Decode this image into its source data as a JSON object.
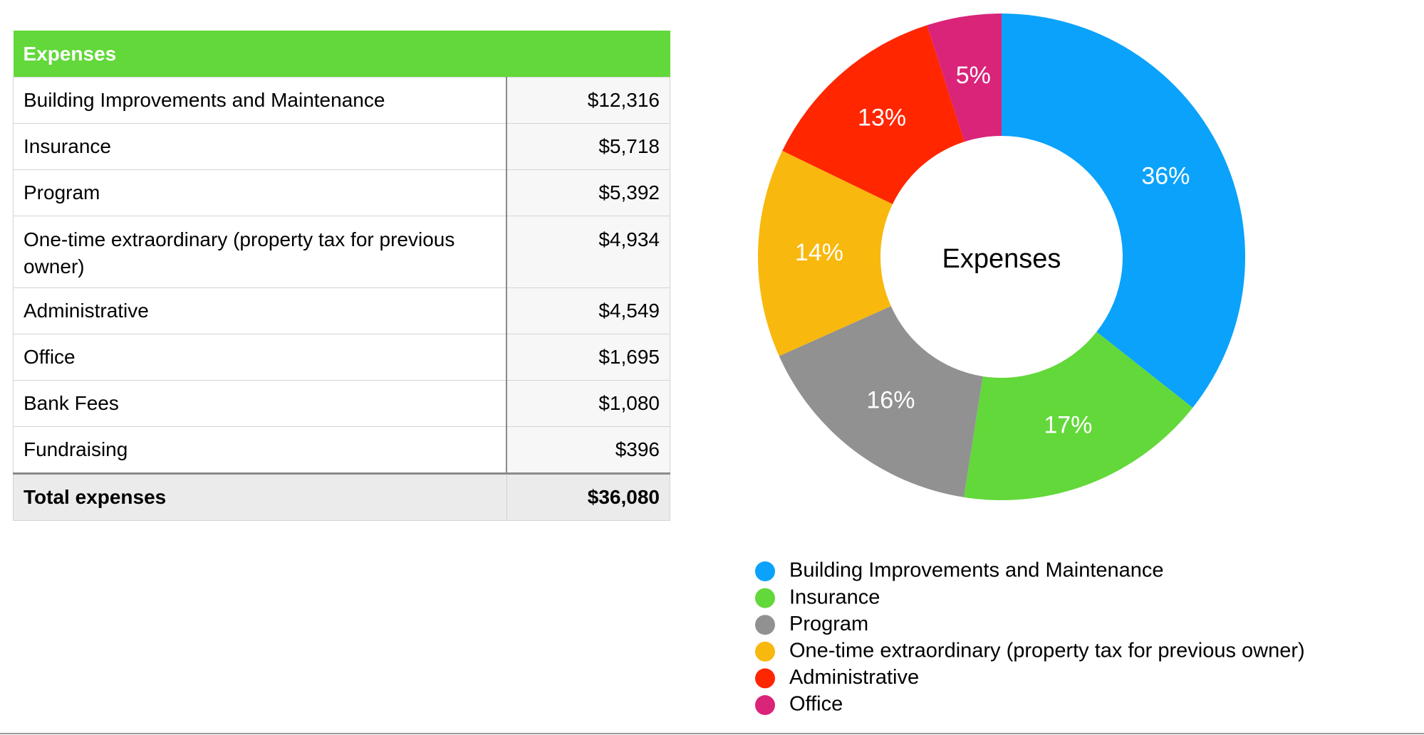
{
  "table": {
    "title": "Expenses",
    "rows": [
      [
        "Building Improvements and Maintenance",
        "$12,316"
      ],
      [
        "Insurance",
        "$5,718"
      ],
      [
        "Program",
        "$5,392"
      ],
      [
        "One-time extraordinary (property tax for previous owner)",
        "$4,934"
      ],
      [
        "Administrative",
        "$4,549"
      ],
      [
        "Office",
        "$1,695"
      ],
      [
        "Bank Fees",
        "$1,080"
      ],
      [
        "Fundraising",
        "$396"
      ]
    ],
    "total": [
      "Total expenses",
      "$36,080"
    ]
  },
  "chart_data": {
    "type": "pie",
    "title": "Expenses",
    "donut": true,
    "categories": [
      "Building Improvements and Maintenance",
      "Insurance",
      "Program",
      "One-time extraordinary (property tax for previous owner)",
      "Administrative",
      "Office"
    ],
    "values": [
      36,
      17,
      16,
      14,
      13,
      5
    ],
    "value_labels": [
      "36%",
      "17%",
      "16%",
      "14%",
      "13%",
      "5%"
    ],
    "colors": [
      "#0aa2fb",
      "#62d83a",
      "#919191",
      "#f8b80d",
      "#ff2600",
      "#d9247a"
    ]
  }
}
